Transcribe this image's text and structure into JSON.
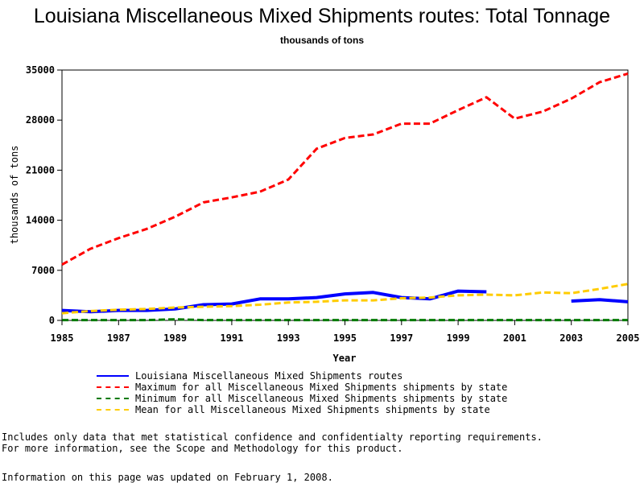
{
  "chart_data": {
    "type": "line",
    "title": "Louisiana Miscellaneous Mixed Shipments routes: Total Tonnage",
    "subtitle": "thousands of tons",
    "xlabel": "Year",
    "ylabel": "thousands of tons",
    "xlim": [
      1985,
      2005
    ],
    "ylim": [
      0,
      35000
    ],
    "x_ticks": [
      "1985",
      "1987",
      "1989",
      "1991",
      "1993",
      "1995",
      "1997",
      "1999",
      "2001",
      "2003",
      "2005"
    ],
    "y_ticks": [
      "0",
      "7000",
      "14000",
      "21000",
      "28000",
      "35000"
    ],
    "grid": false,
    "legend_position": "bottom",
    "series": [
      {
        "name": "Louisiana Miscellaneous Mixed Shipments routes",
        "color": "#0000ff",
        "style": "solid",
        "segments": [
          {
            "x": [
              1985,
              1986,
              1987,
              1988,
              1989,
              1990,
              1991,
              1992,
              1993,
              1994,
              1995,
              1996,
              1997,
              1998,
              1999,
              2000
            ],
            "y": [
              1400,
              1200,
              1400,
              1400,
              1600,
              2200,
              2300,
              3000,
              3000,
              3200,
              3700,
              3900,
              3200,
              3000,
              4100,
              4000
            ]
          },
          {
            "x": [
              2003,
              2004,
              2005
            ],
            "y": [
              2700,
              2900,
              2600
            ]
          }
        ]
      },
      {
        "name": "Maximum for all Miscellaneous Mixed Shipments shipments by state",
        "color": "#ff0000",
        "style": "dashed",
        "segments": [
          {
            "x": [
              1985,
              1986,
              1987,
              1988,
              1989,
              1990,
              1991,
              1992,
              1993,
              1994,
              1995,
              1996,
              1997,
              1998,
              1999,
              2000,
              2001,
              2002,
              2003,
              2004,
              2005
            ],
            "y": [
              7800,
              10000,
              11500,
              12800,
              14500,
              16500,
              17200,
              18000,
              19700,
              24000,
              25500,
              26000,
              27500,
              27500,
              29400,
              31200,
              28200,
              29200,
              31000,
              33300,
              34500
            ]
          }
        ]
      },
      {
        "name": "Minimum for all Miscellaneous Mixed Shipments shipments by state",
        "color": "#007a00",
        "style": "dashed",
        "segments": [
          {
            "x": [
              1985,
              1986,
              1987,
              1988,
              1989,
              1990,
              1991,
              1992,
              1993,
              1994,
              1995,
              1996,
              1997,
              1998,
              1999,
              2000,
              2001,
              2002,
              2003,
              2004,
              2005
            ],
            "y": [
              50,
              50,
              50,
              50,
              150,
              50,
              50,
              50,
              50,
              50,
              50,
              50,
              50,
              50,
              50,
              50,
              50,
              50,
              50,
              50,
              50
            ]
          }
        ]
      },
      {
        "name": "Mean for all Miscellaneous Mixed Shipments shipments by state",
        "color": "#ffcc00",
        "style": "dashed",
        "segments": [
          {
            "x": [
              1985,
              1986,
              1987,
              1988,
              1989,
              1990,
              1991,
              1992,
              1993,
              1994,
              1995,
              1996,
              1997,
              1998,
              1999,
              2000,
              2001,
              2002,
              2003,
              2004,
              2005
            ],
            "y": [
              1000,
              1300,
              1500,
              1600,
              1800,
              1900,
              2000,
              2200,
              2500,
              2600,
              2800,
              2800,
              3100,
              3200,
              3500,
              3600,
              3500,
              3900,
              3800,
              4400,
              5100
            ]
          }
        ]
      }
    ]
  },
  "notes": {
    "line1": "Includes only data that met statistical confidence and confidentialty reporting requirements.",
    "line2": "For more information, see the Scope and Methodology for this product.",
    "updated": "Information on this page was updated on February 1, 2008."
  }
}
